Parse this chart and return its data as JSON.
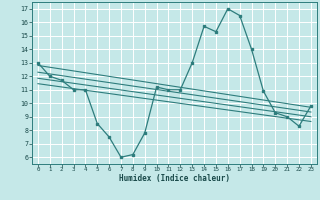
{
  "xlabel": "Humidex (Indice chaleur)",
  "background_color": "#c5e8e8",
  "grid_color": "#ffffff",
  "line_color": "#2e7d7d",
  "xlim": [
    -0.5,
    23.5
  ],
  "ylim": [
    5.5,
    17.5
  ],
  "xticks": [
    0,
    1,
    2,
    3,
    4,
    5,
    6,
    7,
    8,
    9,
    10,
    11,
    12,
    13,
    14,
    15,
    16,
    17,
    18,
    19,
    20,
    21,
    22,
    23
  ],
  "yticks": [
    6,
    7,
    8,
    9,
    10,
    11,
    12,
    13,
    14,
    15,
    16,
    17
  ],
  "line1": [
    13.0,
    12.0,
    11.7,
    11.0,
    11.0,
    8.5,
    7.5,
    6.0,
    6.2,
    7.8,
    11.2,
    11.0,
    11.0,
    13.0,
    15.7,
    15.3,
    17.0,
    16.5,
    14.0,
    10.9,
    9.3,
    9.0,
    8.3,
    9.8
  ],
  "trend_lines": [
    {
      "x": [
        0,
        23
      ],
      "y": [
        12.8,
        9.7
      ]
    },
    {
      "x": [
        0,
        23
      ],
      "y": [
        12.3,
        9.35
      ]
    },
    {
      "x": [
        0,
        23
      ],
      "y": [
        11.85,
        9.0
      ]
    },
    {
      "x": [
        0,
        23
      ],
      "y": [
        11.45,
        8.65
      ]
    }
  ]
}
